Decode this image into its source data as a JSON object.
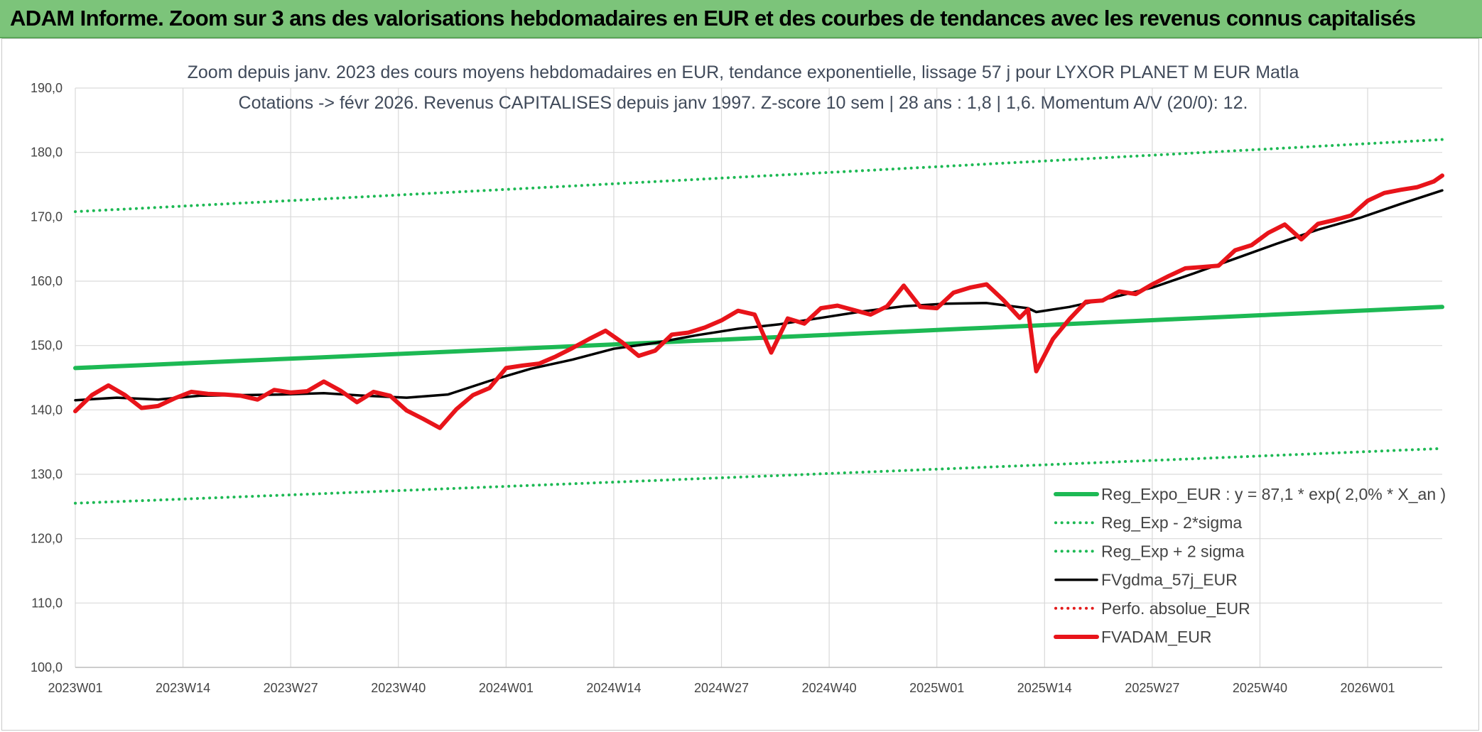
{
  "banner": {
    "title": "ADAM Informe. Zoom sur 3 ans des valorisations hebdomadaires en EUR et des courbes de tendances avec les revenus connus capitalisés",
    "color": "#7cc47a"
  },
  "chart_data": {
    "type": "line",
    "title": "Zoom depuis janv. 2023 des cours moyens hebdomadaires en EUR, tendance exponentielle, lissage 57 j pour LYXOR PLANET M EUR Matla",
    "subtitle": "Cotations -> févr 2026. Revenus CAPITALISES depuis janv 1997. Z-score 10 sem | 28 ans : 1,8 | 1,6. Momentum A/V (20/0): 12.",
    "xlabel": "",
    "ylabel": "",
    "ylim": [
      100,
      190
    ],
    "yticks": [
      "100,0",
      "110,0",
      "120,0",
      "130,0",
      "140,0",
      "150,0",
      "160,0",
      "170,0",
      "180,0",
      "190,0"
    ],
    "xticks": [
      "2023W01",
      "2023W14",
      "2023W27",
      "2023W40",
      "2024W01",
      "2024W14",
      "2024W27",
      "2024W40",
      "2025W01",
      "2025W14",
      "2025W27",
      "2025W40",
      "2026W01"
    ],
    "x_domain": [
      0,
      165
    ],
    "grid": true,
    "legend_position": "bottom-right",
    "series": [
      {
        "name": "Reg_Expo_EUR : y = 87,1 * exp( 2,0% *  X_an )",
        "style": "thick",
        "color": "#1db954",
        "x": [
          0,
          165
        ],
        "y": [
          146.5,
          156.0
        ]
      },
      {
        "name": "Reg_Exp - 2*sigma",
        "style": "dotted",
        "color": "#1db954",
        "x": [
          0,
          165
        ],
        "y": [
          125.5,
          134.0
        ]
      },
      {
        "name": "Reg_Exp + 2 sigma",
        "style": "dotted",
        "color": "#1db954",
        "x": [
          0,
          165
        ],
        "y": [
          170.8,
          182.0
        ]
      },
      {
        "name": "FVgdma_57j_EUR",
        "style": "solid",
        "color": "#000000",
        "x": [
          0,
          5,
          10,
          15,
          20,
          25,
          30,
          35,
          40,
          45,
          50,
          55,
          60,
          65,
          70,
          75,
          80,
          85,
          90,
          95,
          100,
          105,
          110,
          115,
          116,
          120,
          125,
          130,
          135,
          140,
          145,
          150,
          155,
          160,
          165
        ],
        "y": [
          141.5,
          141.9,
          141.6,
          142.2,
          142.3,
          142.4,
          142.6,
          142.2,
          141.9,
          142.4,
          144.5,
          146.4,
          147.8,
          149.5,
          150.4,
          151.6,
          152.6,
          153.3,
          154.3,
          155.3,
          156.1,
          156.5,
          156.6,
          155.8,
          155.2,
          156.0,
          157.4,
          159.0,
          161.2,
          163.5,
          165.8,
          168.0,
          169.8,
          172.0,
          174.1
        ]
      },
      {
        "name": "Perfo. absolue_EUR",
        "style": "dotted",
        "color": "#e31b1b",
        "x": [],
        "y": []
      },
      {
        "name": "FVADAM_EUR",
        "style": "thick",
        "color": "#e8141a",
        "x": [
          0,
          2,
          4,
          6,
          8,
          10,
          12,
          14,
          16,
          18,
          20,
          22,
          24,
          26,
          28,
          30,
          32,
          34,
          36,
          38,
          40,
          42,
          44,
          46,
          48,
          50,
          52,
          54,
          56,
          58,
          60,
          62,
          64,
          66,
          68,
          70,
          72,
          74,
          76,
          78,
          80,
          82,
          84,
          86,
          88,
          90,
          92,
          94,
          96,
          98,
          100,
          102,
          104,
          106,
          108,
          110,
          112,
          114,
          115,
          116,
          118,
          120,
          122,
          124,
          126,
          128,
          130,
          132,
          134,
          136,
          138,
          140,
          142,
          144,
          146,
          148,
          150,
          152,
          154,
          156,
          158,
          160,
          162,
          164,
          165
        ],
        "y": [
          139.8,
          142.3,
          143.8,
          142.3,
          140.3,
          140.6,
          141.8,
          142.8,
          142.5,
          142.4,
          142.2,
          141.6,
          143.1,
          142.7,
          142.9,
          144.4,
          143.0,
          141.2,
          142.8,
          142.2,
          139.9,
          138.6,
          137.2,
          140.1,
          142.3,
          143.4,
          146.5,
          146.9,
          147.2,
          148.3,
          149.6,
          151.0,
          152.3,
          150.5,
          148.4,
          149.2,
          151.7,
          152.0,
          152.8,
          153.9,
          155.4,
          154.8,
          148.9,
          154.2,
          153.4,
          155.8,
          156.2,
          155.5,
          154.8,
          156.1,
          159.3,
          156.0,
          155.8,
          158.2,
          159.0,
          159.5,
          157.1,
          154.3,
          155.6,
          146.0,
          151.0,
          154.1,
          156.8,
          157.0,
          158.4,
          158.0,
          159.5,
          160.8,
          162.0,
          162.2,
          162.4,
          164.8,
          165.6,
          167.5,
          168.8,
          166.5,
          168.9,
          169.5,
          170.2,
          172.5,
          173.7,
          174.2,
          174.6,
          175.5,
          176.4
        ]
      }
    ]
  }
}
